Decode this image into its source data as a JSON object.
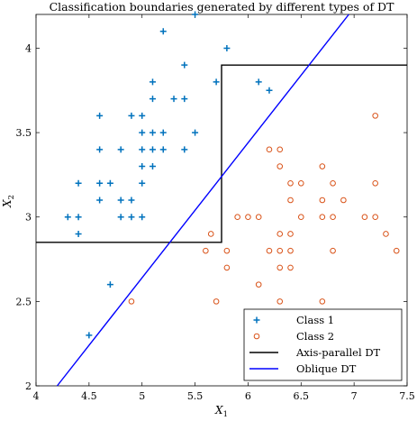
{
  "chart_data": {
    "type": "scatter",
    "title": "Classification boundaries generated by different types of DT",
    "xlabel": "X",
    "xlabel_sub": "1",
    "ylabel": "X",
    "ylabel_sub": "2",
    "xlim": [
      4,
      7.5
    ],
    "ylim": [
      2,
      4.2
    ],
    "xticks": [
      4,
      4.5,
      5,
      5.5,
      6,
      6.5,
      7,
      7.5
    ],
    "yticks": [
      2,
      2.5,
      3,
      3.5,
      4
    ],
    "xtick_labels": [
      "4",
      "4.5",
      "5",
      "5.5",
      "6",
      "6.5",
      "7",
      "7.5"
    ],
    "ytick_labels": [
      "2",
      "2.5",
      "3",
      "3.5",
      "4"
    ],
    "grid": false,
    "legend_position": "bottom-right",
    "series": [
      {
        "name": "Class 1",
        "marker": "plus",
        "color": "#0072BD",
        "points": [
          [
            5.5,
            4.2
          ],
          [
            5.2,
            4.1
          ],
          [
            5.8,
            4.0
          ],
          [
            5.4,
            3.9
          ],
          [
            5.7,
            3.8
          ],
          [
            6.1,
            3.8
          ],
          [
            5.1,
            3.8
          ],
          [
            6.2,
            3.75
          ],
          [
            5.1,
            3.7
          ],
          [
            5.3,
            3.7
          ],
          [
            5.4,
            3.7
          ],
          [
            4.6,
            3.6
          ],
          [
            4.9,
            3.6
          ],
          [
            5.0,
            3.6
          ],
          [
            5.0,
            3.5
          ],
          [
            5.1,
            3.5
          ],
          [
            5.2,
            3.5
          ],
          [
            5.5,
            3.5
          ],
          [
            4.6,
            3.4
          ],
          [
            4.8,
            3.4
          ],
          [
            5.0,
            3.4
          ],
          [
            5.1,
            3.4
          ],
          [
            5.2,
            3.4
          ],
          [
            5.4,
            3.4
          ],
          [
            5.0,
            3.3
          ],
          [
            5.1,
            3.3
          ],
          [
            4.4,
            3.2
          ],
          [
            4.6,
            3.2
          ],
          [
            4.7,
            3.2
          ],
          [
            5.0,
            3.2
          ],
          [
            4.6,
            3.1
          ],
          [
            4.8,
            3.1
          ],
          [
            4.9,
            3.1
          ],
          [
            4.3,
            3.0
          ],
          [
            4.4,
            3.0
          ],
          [
            4.8,
            3.0
          ],
          [
            4.9,
            3.0
          ],
          [
            5.0,
            3.0
          ],
          [
            4.4,
            2.9
          ],
          [
            4.7,
            2.6
          ],
          [
            4.5,
            2.3
          ]
        ]
      },
      {
        "name": "Class 2",
        "marker": "circle",
        "color": "#D95319",
        "points": [
          [
            7.2,
            3.6
          ],
          [
            6.2,
            3.4
          ],
          [
            6.3,
            3.4
          ],
          [
            6.3,
            3.3
          ],
          [
            6.7,
            3.3
          ],
          [
            6.4,
            3.2
          ],
          [
            6.5,
            3.2
          ],
          [
            6.8,
            3.2
          ],
          [
            7.2,
            3.2
          ],
          [
            6.7,
            3.1
          ],
          [
            6.9,
            3.1
          ],
          [
            6.4,
            3.1
          ],
          [
            5.9,
            3.0
          ],
          [
            6.0,
            3.0
          ],
          [
            6.1,
            3.0
          ],
          [
            6.5,
            3.0
          ],
          [
            6.7,
            3.0
          ],
          [
            6.8,
            3.0
          ],
          [
            7.1,
            3.0
          ],
          [
            7.2,
            3.0
          ],
          [
            5.65,
            2.9
          ],
          [
            6.3,
            2.9
          ],
          [
            7.3,
            2.9
          ],
          [
            6.4,
            2.9
          ],
          [
            5.6,
            2.8
          ],
          [
            5.8,
            2.8
          ],
          [
            6.2,
            2.8
          ],
          [
            6.3,
            2.8
          ],
          [
            6.4,
            2.8
          ],
          [
            6.8,
            2.8
          ],
          [
            7.4,
            2.8
          ],
          [
            5.8,
            2.7
          ],
          [
            6.3,
            2.7
          ],
          [
            6.4,
            2.7
          ],
          [
            6.1,
            2.6
          ],
          [
            4.9,
            2.5
          ],
          [
            5.7,
            2.5
          ],
          [
            6.3,
            2.5
          ],
          [
            6.7,
            2.5
          ]
        ]
      },
      {
        "name": "Axis-parallel DT",
        "type": "line",
        "color": "#000000",
        "x": [
          4.0,
          5.75,
          5.75,
          7.5
        ],
        "y": [
          2.85,
          2.85,
          3.9,
          3.9
        ]
      },
      {
        "name": "Oblique DT",
        "type": "line",
        "color": "#0000FF",
        "x": [
          4.2,
          6.95
        ],
        "y": [
          2.0,
          4.2
        ]
      }
    ]
  }
}
